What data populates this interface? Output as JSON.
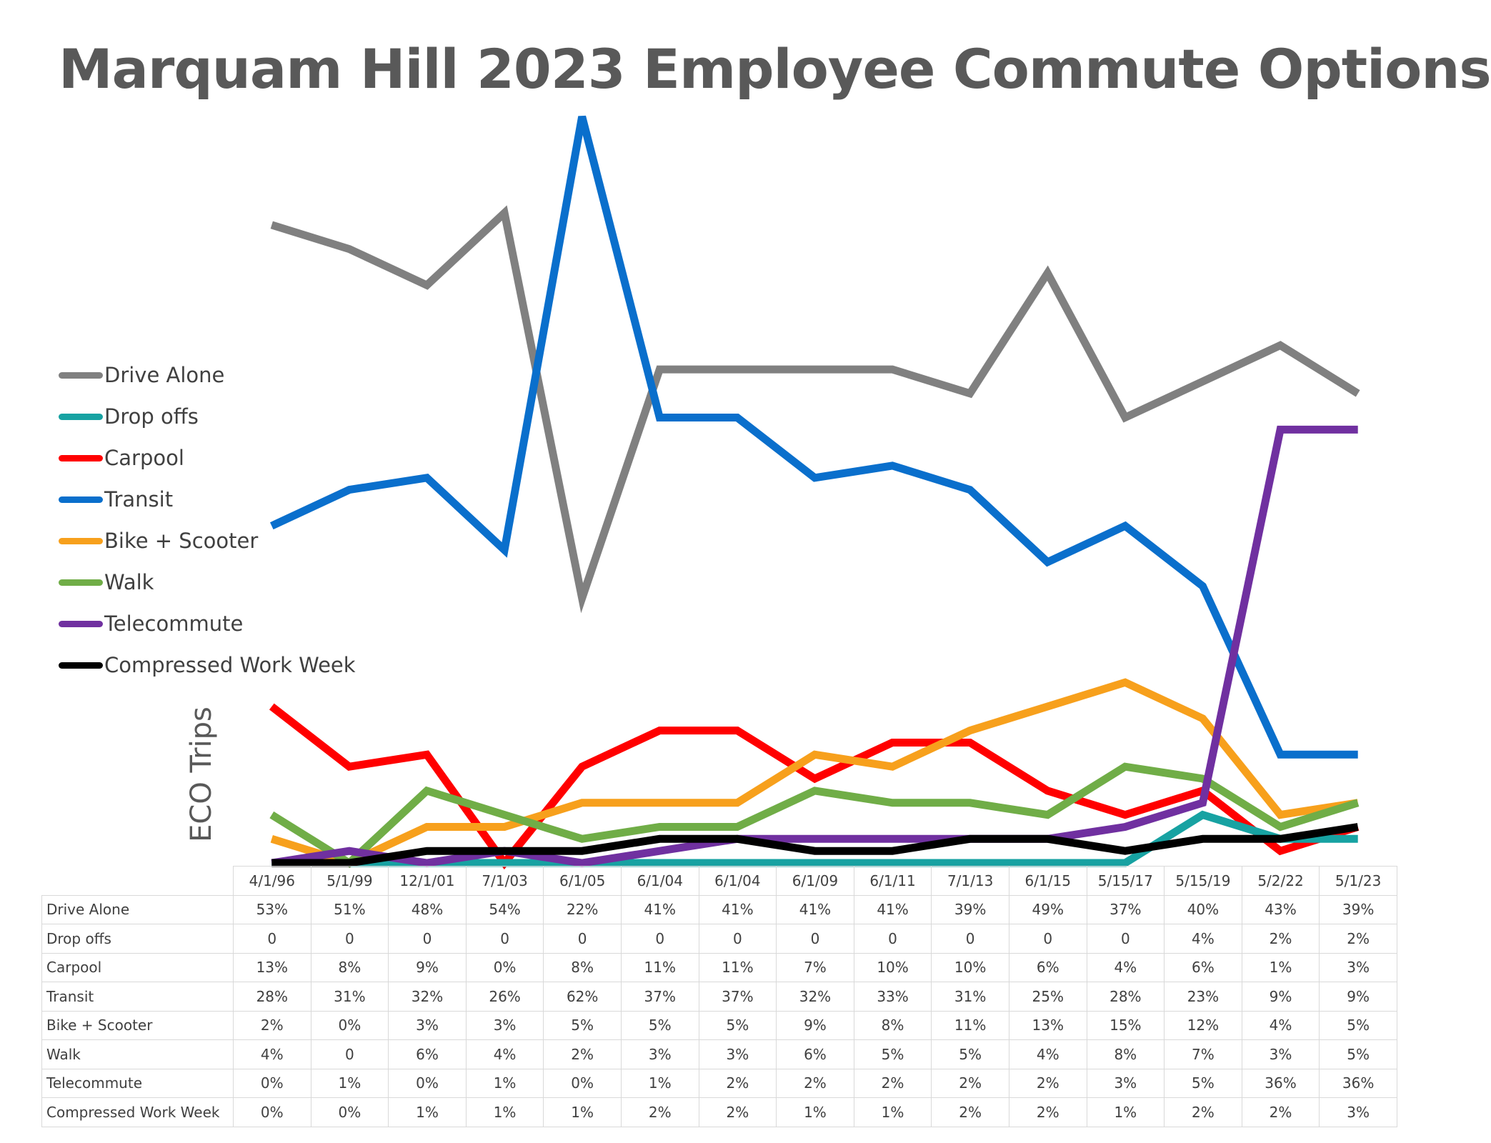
{
  "title": "Marquam Hill 2023 Employee Commute Options",
  "chart_data": {
    "type": "line",
    "ylabel": "ECO Trips",
    "categories": [
      "4/1/96",
      "5/1/99",
      "12/1/01",
      "7/1/03",
      "6/1/05",
      "6/1/04",
      "6/1/04",
      "6/1/09",
      "6/1/11",
      "7/1/13",
      "6/1/15",
      "5/15/17",
      "5/15/19",
      "5/2/22",
      "5/1/23"
    ],
    "legend_position": "left",
    "grid": false,
    "series": [
      {
        "name": "Drive Alone",
        "color": "#808080",
        "values": [
          53,
          51,
          48,
          54,
          22,
          41,
          41,
          41,
          41,
          39,
          49,
          37,
          40,
          43,
          39
        ],
        "table": [
          "53%",
          "51%",
          "48%",
          "54%",
          "22%",
          "41%",
          "41%",
          "41%",
          "41%",
          "39%",
          "49%",
          "37%",
          "40%",
          "43%",
          "39%"
        ]
      },
      {
        "name": "Drop offs",
        "color": "#17A2A2",
        "values": [
          0,
          0,
          0,
          0,
          0,
          0,
          0,
          0,
          0,
          0,
          0,
          0,
          4,
          2,
          2
        ],
        "table": [
          "0",
          "0",
          "0",
          "0",
          "0",
          "0",
          "0",
          "0",
          "0",
          "0",
          "0",
          "0",
          "4%",
          "2%",
          "2%"
        ]
      },
      {
        "name": "Carpool",
        "color": "#FF0000",
        "values": [
          13,
          8,
          9,
          0,
          8,
          11,
          11,
          7,
          10,
          10,
          6,
          4,
          6,
          1,
          3
        ],
        "table": [
          "13%",
          "8%",
          "9%",
          "0%",
          "8%",
          "11%",
          "11%",
          "7%",
          "10%",
          "10%",
          "6%",
          "4%",
          "6%",
          "1%",
          "3%"
        ]
      },
      {
        "name": "Transit",
        "color": "#0A6FCC",
        "values": [
          28,
          31,
          32,
          26,
          62,
          37,
          37,
          32,
          33,
          31,
          25,
          28,
          23,
          9,
          9
        ],
        "table": [
          "28%",
          "31%",
          "32%",
          "26%",
          "62%",
          "37%",
          "37%",
          "32%",
          "33%",
          "31%",
          "25%",
          "28%",
          "23%",
          "9%",
          "9%"
        ]
      },
      {
        "name": "Bike + Scooter",
        "color": "#F7A01C",
        "values": [
          2,
          0,
          3,
          3,
          5,
          5,
          5,
          9,
          8,
          11,
          13,
          15,
          12,
          4,
          5
        ],
        "table": [
          "2%",
          "0%",
          "3%",
          "3%",
          "5%",
          "5%",
          "5%",
          "9%",
          "8%",
          "11%",
          "13%",
          "15%",
          "12%",
          "4%",
          "5%"
        ]
      },
      {
        "name": "Walk",
        "color": "#70AD47",
        "values": [
          4,
          0,
          6,
          4,
          2,
          3,
          3,
          6,
          5,
          5,
          4,
          8,
          7,
          3,
          5
        ],
        "table": [
          "4%",
          "0",
          "6%",
          "4%",
          "2%",
          "3%",
          "3%",
          "6%",
          "5%",
          "5%",
          "4%",
          "8%",
          "7%",
          "3%",
          "5%"
        ]
      },
      {
        "name": "Telecommute",
        "color": "#7030A0",
        "values": [
          0,
          1,
          0,
          1,
          0,
          1,
          2,
          2,
          2,
          2,
          2,
          3,
          5,
          36,
          36
        ],
        "table": [
          "0%",
          "1%",
          "0%",
          "1%",
          "0%",
          "1%",
          "2%",
          "2%",
          "2%",
          "2%",
          "2%",
          "3%",
          "5%",
          "36%",
          "36%"
        ]
      },
      {
        "name": "Compressed Work Week",
        "color": "#000000",
        "values": [
          0,
          0,
          1,
          1,
          1,
          2,
          2,
          1,
          1,
          2,
          2,
          1,
          2,
          2,
          3
        ],
        "table": [
          "0%",
          "0%",
          "1%",
          "1%",
          "1%",
          "2%",
          "2%",
          "1%",
          "1%",
          "2%",
          "2%",
          "1%",
          "2%",
          "2%",
          "3%"
        ]
      }
    ]
  }
}
